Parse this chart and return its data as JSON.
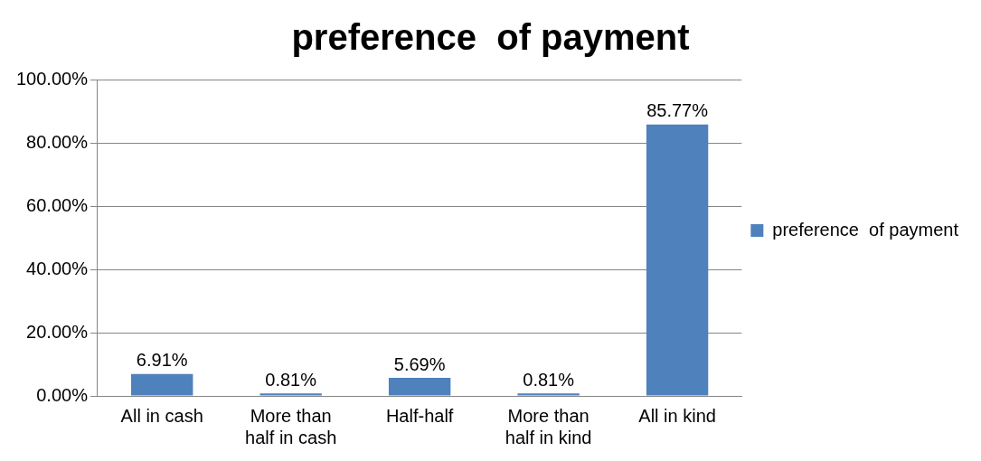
{
  "chart_data": {
    "type": "bar",
    "title": "preference  of payment",
    "categories": [
      "All in cash",
      "More than half in cash",
      "Half-half",
      "More than half in kind",
      "All in kind"
    ],
    "series": [
      {
        "name": "preference  of payment",
        "color": "#4f81bd",
        "values": [
          6.91,
          0.81,
          5.69,
          0.81,
          85.77
        ],
        "value_labels": [
          "6.91%",
          "0.81%",
          "5.69%",
          "0.81%",
          "85.77%"
        ]
      }
    ],
    "ylim": [
      0,
      100
    ],
    "yticks": [
      {
        "value": 0,
        "label": "0.00%"
      },
      {
        "value": 20,
        "label": "20.00%"
      },
      {
        "value": 40,
        "label": "40.00%"
      },
      {
        "value": 60,
        "label": "60.00%"
      },
      {
        "value": 80,
        "label": "80.00%"
      },
      {
        "value": 100,
        "label": "100.00%"
      }
    ],
    "grid": "y",
    "legend": "right"
  }
}
